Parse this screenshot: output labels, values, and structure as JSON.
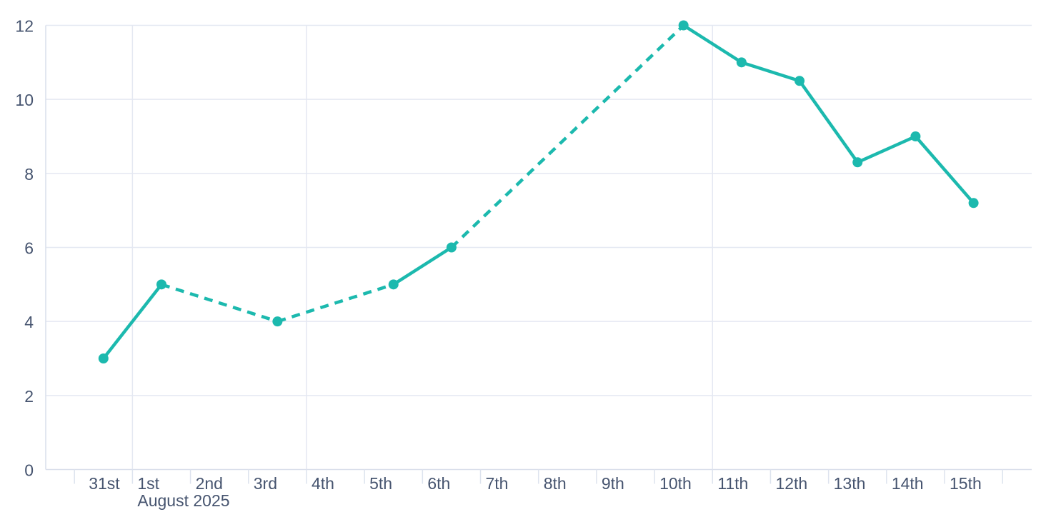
{
  "page": {
    "background": "#ffffff"
  },
  "chart_data": {
    "type": "line",
    "title": "",
    "legend": null,
    "x_axis": {
      "categories": [
        "31st",
        "1st",
        "2nd",
        "3rd",
        "4th",
        "5th",
        "6th",
        "7th",
        "8th",
        "9th",
        "10th",
        "11th",
        "12th",
        "13th",
        "14th",
        "15th"
      ],
      "month_label": "August 2025",
      "month_label_under_category": "1st",
      "weekly_gridline_categories": [
        "1st",
        "4th",
        "11th"
      ]
    },
    "y_axis": {
      "ticks": [
        0,
        2,
        4,
        6,
        8,
        10,
        12
      ],
      "min": 0,
      "max": 12
    },
    "grid": {
      "horizontal": true,
      "vertical": "weekly"
    },
    "series": [
      {
        "name": "daily-values",
        "color": "#1cb9ae",
        "marker": "circle",
        "missing_data_style": "dashed-bridge",
        "points": [
          {
            "category": "31st",
            "value": 3
          },
          {
            "category": "1st",
            "value": 5
          },
          {
            "category": "2nd",
            "value": null
          },
          {
            "category": "3rd",
            "value": 4
          },
          {
            "category": "4th",
            "value": null
          },
          {
            "category": "5th",
            "value": 5
          },
          {
            "category": "6th",
            "value": 6
          },
          {
            "category": "7th",
            "value": null
          },
          {
            "category": "8th",
            "value": null
          },
          {
            "category": "9th",
            "value": null
          },
          {
            "category": "10th",
            "value": 12
          },
          {
            "category": "11th",
            "value": 11
          },
          {
            "category": "12th",
            "value": 10.5
          },
          {
            "category": "13th",
            "value": 8.3
          },
          {
            "category": "14th",
            "value": 9
          },
          {
            "category": "15th",
            "value": 7.2
          }
        ]
      }
    ],
    "colors": {
      "accent": "#1cb9ae",
      "label_text": "#46546f",
      "gridline": "#e4e8f2",
      "axis_line": "#d9dfeb",
      "tick": "#dde3ee"
    }
  }
}
